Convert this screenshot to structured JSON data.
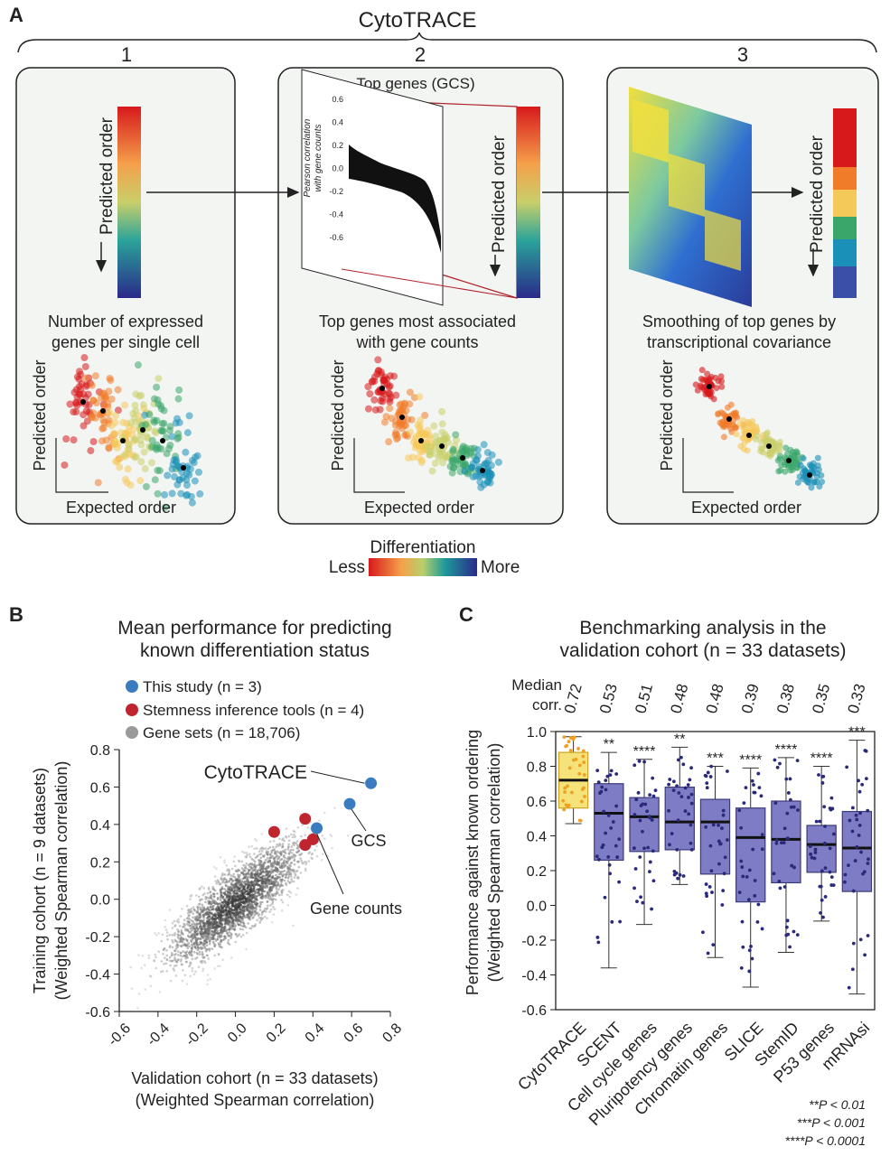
{
  "panel_a": {
    "label": "A",
    "title": "CytoTRACE",
    "steps": [
      {
        "num": "1",
        "caption1": "Number of expressed",
        "caption2": "genes per single cell"
      },
      {
        "num": "2",
        "caption1": "Top genes most associated",
        "caption2": "with gene counts"
      },
      {
        "num": "3",
        "caption1": "Smoothing of top genes by",
        "caption2": "transcriptional covariance"
      }
    ],
    "predicted_order": "Predicted order",
    "expected_order": "Expected order",
    "top_genes_title": "Top genes (GCS)",
    "pearson_label1": "Pearson correlation",
    "pearson_label2": "with gene counts",
    "pearson_ticks": [
      "0.6",
      "0.4",
      "0.2",
      "0.0",
      "-0.2",
      "-0.4",
      "-0.6"
    ],
    "differentiation": {
      "title": "Differentiation",
      "less": "Less",
      "more": "More"
    },
    "gradient_colors": [
      "#d7191c",
      "#f07c2a",
      "#f5c85a",
      "#c9cf6a",
      "#3aa66a",
      "#1a8fb8",
      "#3b4fa8",
      "#2a2a8a"
    ]
  },
  "panel_b": {
    "label": "B",
    "title1": "Mean performance for predicting",
    "title2": "known differentiation status",
    "legend": [
      {
        "text": "This study (n = 3)",
        "color": "#3b7cc1"
      },
      {
        "text": "Stemness inference tools (n = 4)",
        "color": "#c0242f"
      },
      {
        "text": "Gene sets (n = 18,706)",
        "color": "#9a9a9a"
      }
    ],
    "annotations": {
      "cytotrace": "CytoTRACE",
      "gcs": "GCS",
      "gene_counts": "Gene counts"
    }
  },
  "panel_c": {
    "label": "C",
    "title1": "Benchmarking analysis in the",
    "title2": "validation cohort (n = 33 datasets)",
    "median_label1": "Median",
    "median_label2": "corr.",
    "footnotes": [
      "**P < 0.01",
      "***P < 0.001",
      "****P < 0.0001"
    ]
  },
  "chart_data": [
    {
      "type": "scatter",
      "title": "Mean performance for predicting known differentiation status",
      "xlabel": "Validation cohort (n = 33 datasets)",
      "xlabel2": "(Weighted Spearman correlation)",
      "ylabel": "Training cohort (n = 9 datasets)",
      "ylabel2": "(Weighted Spearman correlation)",
      "xlim": [
        -0.6,
        0.8
      ],
      "ylim": [
        -0.6,
        0.8
      ],
      "xticks": [
        -0.6,
        -0.4,
        -0.2,
        0.0,
        0.2,
        0.4,
        0.6,
        0.8
      ],
      "yticks": [
        -0.6,
        -0.4,
        -0.2,
        0.0,
        0.2,
        0.4,
        0.6,
        0.8
      ],
      "xtick_labels": [
        "-0.6",
        "-0.4",
        "-0.2",
        "0.0",
        "0.2",
        "0.4",
        "0.6",
        "0.8"
      ],
      "ytick_labels": [
        "-0.6",
        "-0.4",
        "-0.2",
        "0.0",
        "0.2",
        "0.4",
        "0.6",
        "0.8"
      ],
      "series": [
        {
          "name": "This study",
          "color": "#3b7cc1",
          "points": [
            {
              "label": "CytoTRACE",
              "x": 0.7,
              "y": 0.62
            },
            {
              "label": "GCS",
              "x": 0.59,
              "y": 0.51
            },
            {
              "label": "Gene counts",
              "x": 0.42,
              "y": 0.38
            }
          ]
        },
        {
          "name": "Stemness inference tools",
          "color": "#c0242f",
          "points": [
            {
              "x": 0.2,
              "y": 0.36
            },
            {
              "x": 0.36,
              "y": 0.43
            },
            {
              "x": 0.4,
              "y": 0.32
            },
            {
              "x": 0.36,
              "y": 0.29
            }
          ]
        },
        {
          "name": "Gene sets",
          "color": "#9a9a9a",
          "n": 18706,
          "distribution": {
            "center_x": 0.0,
            "center_y": -0.02,
            "sd_x": 0.17,
            "sd_y": 0.16,
            "corr": 0.82
          }
        }
      ]
    },
    {
      "type": "box",
      "ylabel": "Performance against known ordering",
      "ylabel2": "(Weighted Spearman correlation)",
      "ylim": [
        -0.6,
        1.0
      ],
      "yticks": [
        -0.6,
        -0.4,
        -0.2,
        0.0,
        0.2,
        0.4,
        0.6,
        0.8,
        1.0
      ],
      "ytick_labels": [
        "-0.6",
        "-0.4",
        "-0.2",
        "0.0",
        "0.2",
        "0.4",
        "0.6",
        "0.8",
        "1.0"
      ],
      "categories": [
        "CytoTRACE",
        "SCENT",
        "Cell cycle genes",
        "Pluripotency genes",
        "Chromatin genes",
        "SLICE",
        "StemID",
        "P53 genes",
        "mRNAsi"
      ],
      "medians": [
        0.72,
        0.53,
        0.51,
        0.48,
        0.48,
        0.39,
        0.38,
        0.35,
        0.33
      ],
      "median_labels": [
        "0.72",
        "0.53",
        "0.51",
        "0.48",
        "0.48",
        "0.39",
        "0.38",
        "0.35",
        "0.33"
      ],
      "q1": [
        0.56,
        0.26,
        0.31,
        0.32,
        0.18,
        0.02,
        0.13,
        0.19,
        0.08
      ],
      "q3": [
        0.88,
        0.7,
        0.62,
        0.68,
        0.61,
        0.56,
        0.6,
        0.46,
        0.54
      ],
      "whisker_low": [
        0.47,
        -0.36,
        -0.11,
        0.12,
        -0.3,
        -0.47,
        -0.27,
        -0.09,
        -0.51
      ],
      "whisker_high": [
        0.97,
        0.88,
        0.84,
        0.91,
        0.8,
        0.79,
        0.85,
        0.8,
        0.95
      ],
      "significance": [
        "",
        "**",
        "****",
        "**",
        "***",
        "****",
        "****",
        "****",
        "***"
      ],
      "colors": {
        "highlight_fill": "#f6e27a",
        "highlight_edge": "#c9a520",
        "highlight_points": "#f0a020",
        "box_fill": "#7d7cc4",
        "box_edge": "#3c3a78",
        "points": "#2b2a7a"
      }
    }
  ]
}
